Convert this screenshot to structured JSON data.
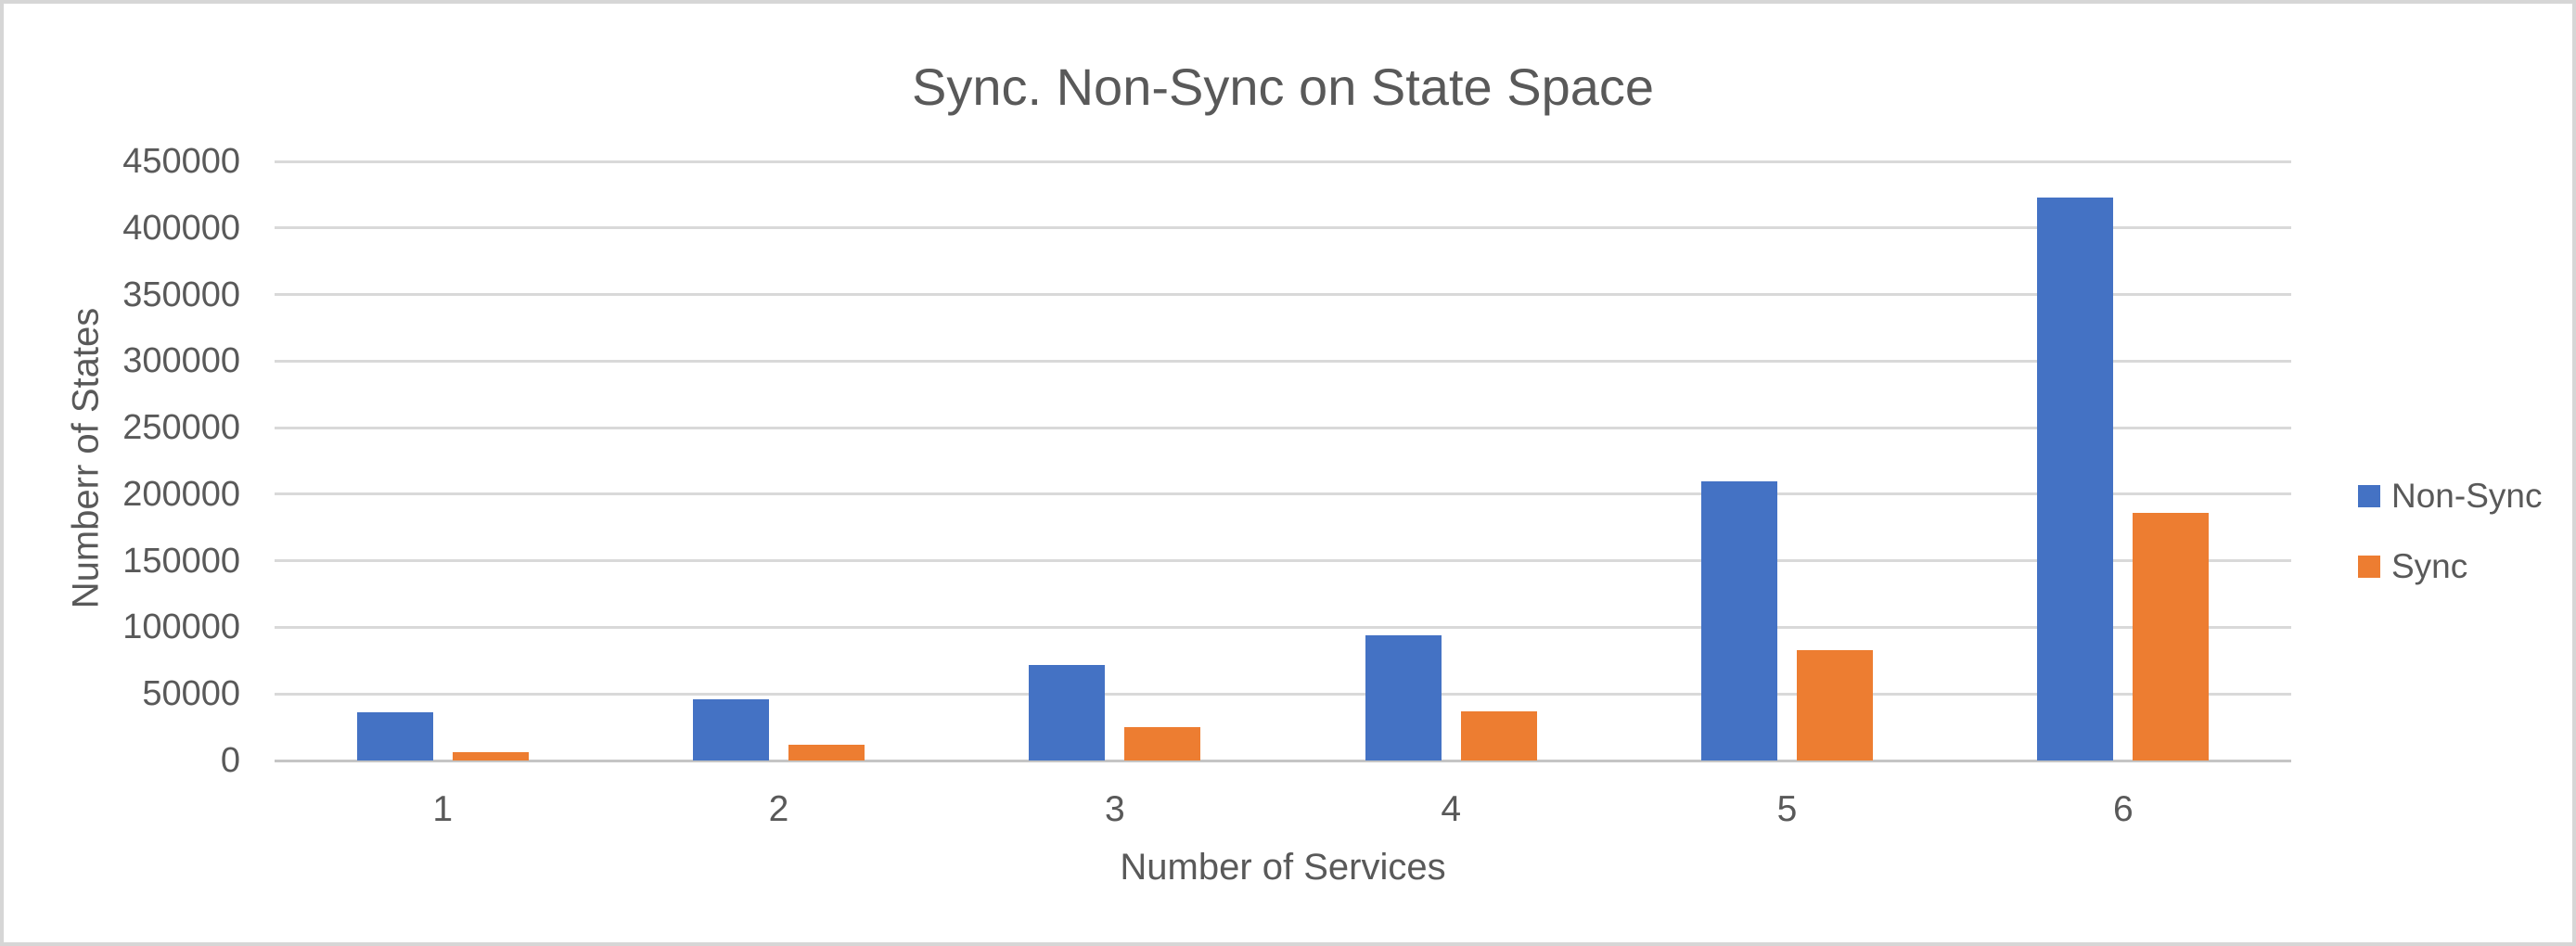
{
  "chart_data": {
    "type": "bar",
    "title": "Sync. Non-Sync on State Space",
    "xlabel": "Number of Services",
    "ylabel": "Numberr of States",
    "categories": [
      "1",
      "2",
      "3",
      "4",
      "5",
      "6"
    ],
    "series": [
      {
        "name": "Non-Sync",
        "color": "#4472C4",
        "values": [
          36000,
          46000,
          72000,
          94000,
          210000,
          423000
        ]
      },
      {
        "name": "Sync",
        "color": "#ED7D31",
        "values": [
          6000,
          12000,
          25000,
          37000,
          83000,
          186000
        ]
      }
    ],
    "ylim": [
      0,
      450000
    ],
    "ytick_step": 50000,
    "yticks": [
      0,
      50000,
      100000,
      150000,
      200000,
      250000,
      300000,
      350000,
      400000,
      450000
    ],
    "grid": "horizontal",
    "legend_position": "right",
    "legend_entries": [
      "Non-Sync",
      "Sync"
    ],
    "colors": {
      "gridline": "#d9d9d9",
      "axis_line": "#c5c5c5",
      "text": "#595959",
      "background": "#ffffff",
      "frame_border": "#d6d6d6"
    }
  }
}
